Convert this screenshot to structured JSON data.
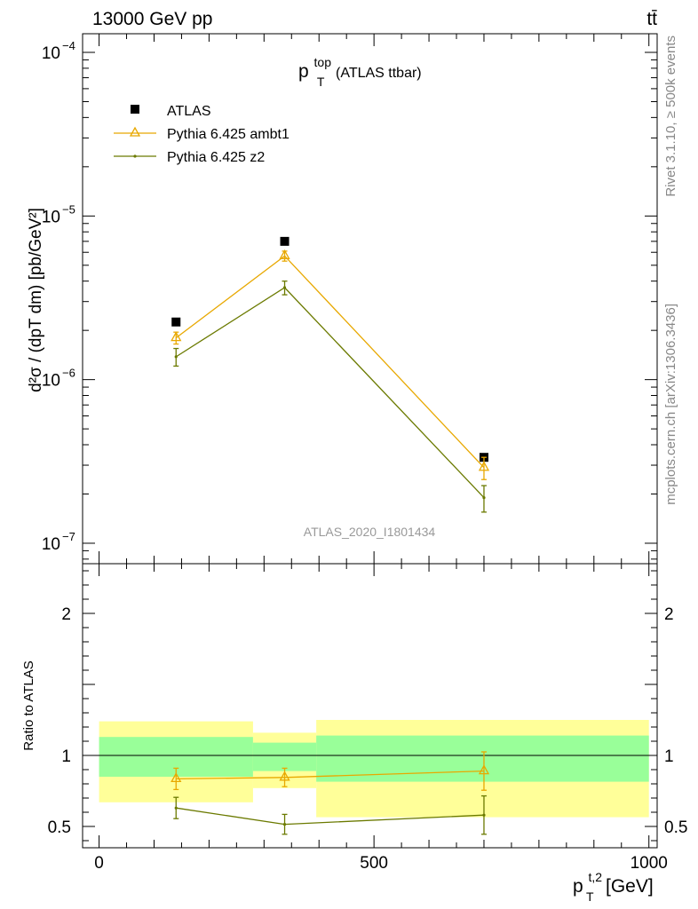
{
  "header": {
    "left": "13000 GeV pp",
    "right": "tt̄"
  },
  "side": {
    "rivet": "Rivet 3.1.10, ≥ 500k events",
    "mcplots": "mcplots.cern.ch [arXiv:1306.3436]"
  },
  "colors": {
    "atlas": "#000000",
    "ambt1": "#e8a800",
    "z2": "#6b7a00",
    "band_inner": "#99ff99",
    "band_outer": "#ffff99"
  },
  "chart_data": [
    {
      "type": "scatter",
      "panel": "main",
      "title_main": "p",
      "title_sup": "top",
      "title_sub": "T",
      "title_rest": "(ATLAS ttbar)",
      "watermark": "ATLAS_2020_I1801434",
      "yaxis": {
        "scale": "log",
        "range": [
          7.5e-08,
          0.00013
        ],
        "ticks": [
          {
            "value": 0.0001,
            "base": "10",
            "exp": "−4"
          },
          {
            "value": 1e-05,
            "base": "10",
            "exp": "−5"
          },
          {
            "value": 1e-06,
            "base": "10",
            "exp": "−6"
          },
          {
            "value": 1e-07,
            "base": "10",
            "exp": "−7"
          }
        ],
        "label": "d²σ/dpᵀ [pb/GeV²]"
      },
      "legend": {
        "position": "top-left",
        "entries": [
          {
            "name": "ATLAS",
            "marker": "square"
          },
          {
            "name": "Pythia 6.425 ambt1",
            "marker": "triangle"
          },
          {
            "name": "Pythia 6.425 z2",
            "marker": "dot"
          }
        ]
      },
      "series": [
        {
          "name": "ATLAS",
          "x": [
            140,
            337.5,
            700
          ],
          "y": [
            2.25e-06,
            7e-06,
            3.35e-07
          ],
          "err_lo": [
            0,
            0,
            0
          ],
          "err_hi": [
            0,
            0,
            0
          ]
        },
        {
          "name": "Pythia 6.425 ambt1",
          "x": [
            140,
            337.5,
            700
          ],
          "y": [
            1.8e-06,
            5.7e-06,
            2.9e-07
          ],
          "err_lo": [
            1.5e-07,
            4e-07,
            4.5e-08
          ],
          "err_hi": [
            1.5e-07,
            4e-07,
            4.5e-08
          ]
        },
        {
          "name": "Pythia 6.425 z2",
          "x": [
            140,
            337.5,
            700
          ],
          "y": [
            1.38e-06,
            3.65e-06,
            1.9e-07
          ],
          "err_lo": [
            1.7e-07,
            3.5e-07,
            3.5e-08
          ],
          "err_hi": [
            1.7e-07,
            3.5e-07,
            3.5e-08
          ]
        }
      ]
    },
    {
      "type": "line",
      "panel": "ratio",
      "ylabel": "Ratio to ATLAS",
      "xlabel_main": "p",
      "xlabel_sup": "t,2",
      "xlabel_sub": "T",
      "xlabel_unit": "[GeV]",
      "xaxis": {
        "range": [
          -30,
          1015
        ],
        "ticks": [
          0,
          500,
          1000
        ],
        "tick_labels": [
          "0",
          "500",
          "1000"
        ]
      },
      "yaxis": {
        "range": [
          0.35,
          2.35
        ],
        "ticks": [
          0.5,
          1,
          2
        ],
        "tick_labels": [
          "0.5",
          "1",
          "2"
        ]
      },
      "bins": [
        {
          "lo": 0,
          "hi": 280,
          "outer": [
            0.67,
            1.24
          ],
          "inner": [
            0.85,
            1.13
          ]
        },
        {
          "lo": 280,
          "hi": 395,
          "outer": [
            0.77,
            1.16
          ],
          "inner": [
            0.89,
            1.09
          ]
        },
        {
          "lo": 395,
          "hi": 1000,
          "outer": [
            0.565,
            1.25
          ],
          "inner": [
            0.815,
            1.14
          ]
        }
      ],
      "series": [
        {
          "name": "Pythia 6.425 ambt1",
          "x": [
            140,
            337.5,
            700
          ],
          "y": [
            0.835,
            0.845,
            0.89
          ],
          "err": [
            0.075,
            0.065,
            0.135
          ]
        },
        {
          "name": "Pythia 6.425 z2",
          "x": [
            140,
            337.5,
            700
          ],
          "y": [
            0.63,
            0.515,
            0.58
          ],
          "err": [
            0.075,
            0.07,
            0.135
          ]
        }
      ]
    }
  ]
}
